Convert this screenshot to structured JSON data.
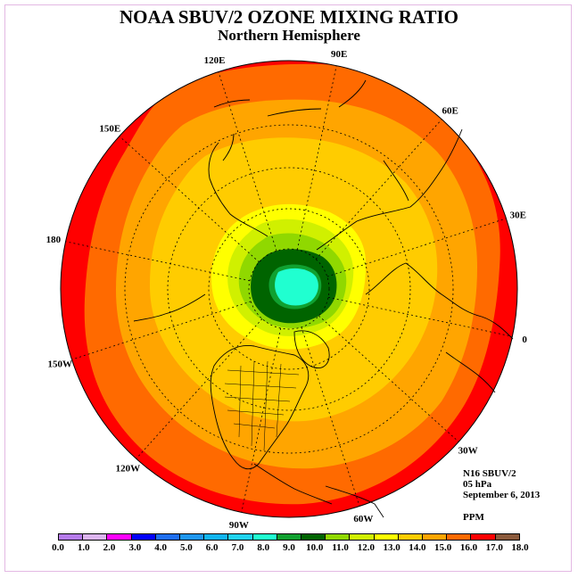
{
  "title": "NOAA SBUV/2 OZONE MIXING RATIO",
  "subtitle": "Northern Hemisphere",
  "info": {
    "instrument": "N16 SBUV/2",
    "level": "05 hPa",
    "date": "September 6, 2013",
    "units": "PPM"
  },
  "longitude_labels": [
    {
      "text": "0",
      "lon": 0
    },
    {
      "text": "30E",
      "lon": 30
    },
    {
      "text": "60E",
      "lon": 60
    },
    {
      "text": "90E",
      "lon": 90
    },
    {
      "text": "120E",
      "lon": 120
    },
    {
      "text": "150E",
      "lon": 150
    },
    {
      "text": "180",
      "lon": 180
    },
    {
      "text": "150W",
      "lon": -150
    },
    {
      "text": "120W",
      "lon": -120
    },
    {
      "text": "90W",
      "lon": -90
    },
    {
      "text": "60W",
      "lon": -60
    },
    {
      "text": "30W",
      "lon": -30
    }
  ],
  "colorbar": {
    "ticks": [
      "0.0",
      "1.0",
      "2.0",
      "3.0",
      "4.0",
      "5.0",
      "6.0",
      "7.0",
      "8.0",
      "9.0",
      "10.0",
      "11.0",
      "12.0",
      "13.0",
      "14.0",
      "15.0",
      "16.0",
      "17.0",
      "18.0"
    ],
    "colors": [
      "#b57bea",
      "#dcb4f0",
      "#ff00ff",
      "#0000ff",
      "#1e6ef0",
      "#1e96f0",
      "#10b4f0",
      "#20d2f0",
      "#20ffd0",
      "#10a030",
      "#006400",
      "#90d800",
      "#d0f000",
      "#ffff00",
      "#ffcc00",
      "#ffa500",
      "#ff6a00",
      "#ff0000",
      "#8b5a3c"
    ]
  },
  "map_colors": {
    "background": "#ff0000",
    "land_outline": "#000000",
    "grid": "#000000"
  }
}
